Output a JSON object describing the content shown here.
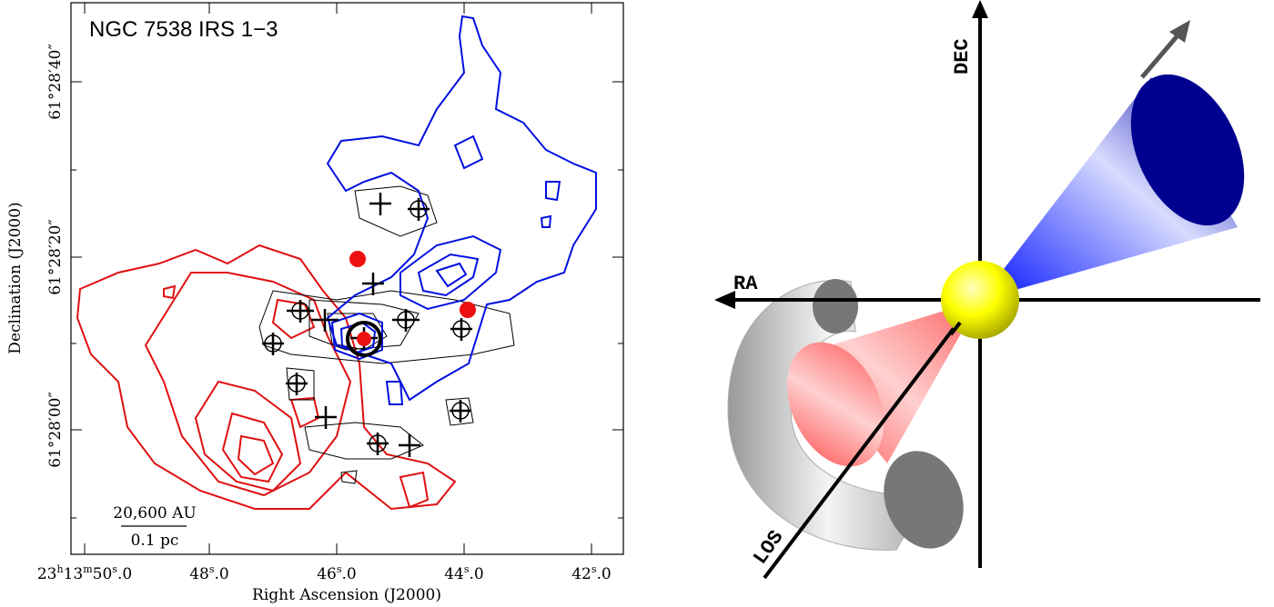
{
  "map": {
    "title": "NGC 7538 IRS 1−3",
    "x_label": "Right Ascension (J2000)",
    "y_label": "Declination (J2000)",
    "x_ticks": [
      [
        "23",
        "h",
        "13",
        "m",
        "50",
        "s",
        ".0"
      ],
      [
        "48",
        "s",
        ".0"
      ],
      [
        "46",
        "s",
        ".0"
      ],
      [
        "44",
        "s",
        ".0"
      ],
      [
        "42",
        "s",
        ".0"
      ]
    ],
    "y_ticks": [
      "61°28′40″",
      "61°28′20″",
      "61°28′00″"
    ],
    "scale_bar": {
      "top": "20,600 AU",
      "bottom": "0.1 pc"
    }
  },
  "diagram": {
    "dec_label": "DEC",
    "ra_label": "RA",
    "los_label": "LOS"
  }
}
